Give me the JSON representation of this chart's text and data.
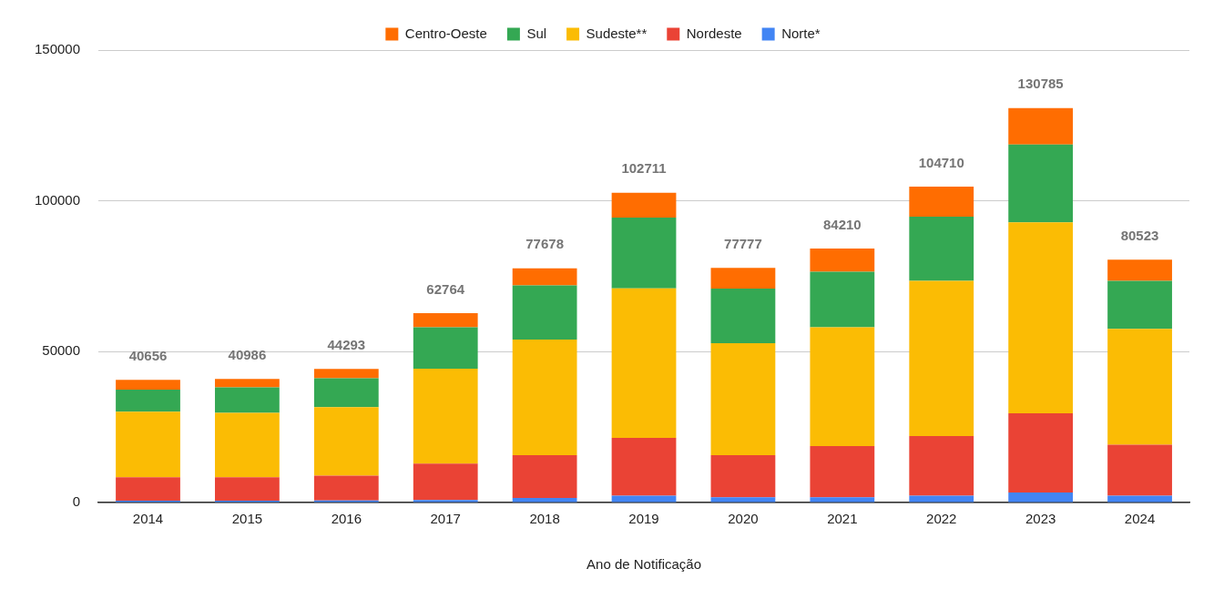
{
  "chart_data": {
    "type": "bar",
    "stacked": true,
    "xlabel": "Ano de Notificação",
    "categories": [
      "2014",
      "2015",
      "2016",
      "2017",
      "2018",
      "2019",
      "2020",
      "2021",
      "2022",
      "2023",
      "2024"
    ],
    "series": [
      {
        "name": "Norte*",
        "color": "#4285f4",
        "values": [
          600,
          600,
          700,
          800,
          1500,
          2300,
          1700,
          1700,
          2300,
          3300,
          2300
        ]
      },
      {
        "name": "Nordeste",
        "color": "#ea4335",
        "values": [
          7800,
          7800,
          8200,
          12100,
          14200,
          19100,
          14000,
          17000,
          19700,
          26300,
          16900
        ]
      },
      {
        "name": "Sudeste**",
        "color": "#fbbc04",
        "values": [
          21700,
          21300,
          22700,
          31500,
          38300,
          49600,
          37100,
          39400,
          51500,
          63300,
          38400
        ]
      },
      {
        "name": "Sul",
        "color": "#34a853",
        "values": [
          7300,
          8500,
          9600,
          13700,
          18000,
          23500,
          18100,
          18400,
          21300,
          25800,
          15900
        ]
      },
      {
        "name": "Centro-Oeste",
        "color": "#ff6d01",
        "values": [
          3256,
          2786,
          3093,
          4664,
          5678,
          8211,
          6877,
          7710,
          9910,
          12085,
          7023
        ]
      }
    ],
    "totals": [
      "40656",
      "40986",
      "44293",
      "62764",
      "77678",
      "102711",
      "77777",
      "84210",
      "104710",
      "130785",
      "80523"
    ],
    "ylim": [
      0,
      150000
    ],
    "yticks": [
      0,
      50000,
      100000,
      150000
    ],
    "grid": "y",
    "legend": "top"
  }
}
